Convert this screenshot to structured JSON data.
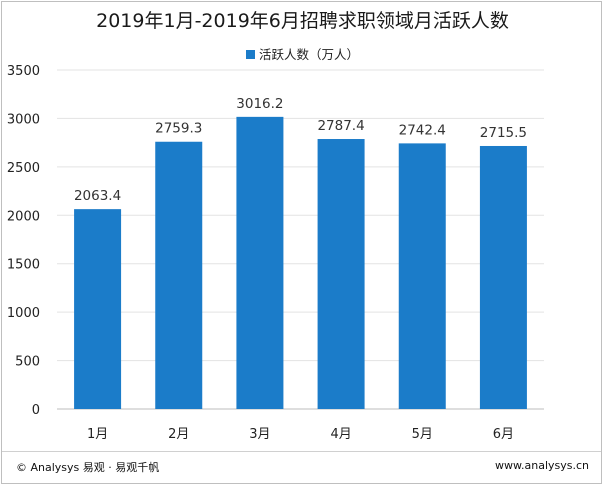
{
  "chart_data": {
    "type": "bar",
    "title": "2019年1月-2019年6月招聘求职领域月活跃人数",
    "categories": [
      "1月",
      "2月",
      "3月",
      "4月",
      "5月",
      "6月"
    ],
    "series": [
      {
        "name": "活跃人数（万人）",
        "values": [
          2063.4,
          2759.3,
          3016.2,
          2787.4,
          2742.4,
          2715.5
        ],
        "color": "#1b7cc9"
      }
    ],
    "ylim": [
      0,
      3500
    ],
    "yticks": [
      0,
      500,
      1000,
      1500,
      2000,
      2500,
      3000,
      3500
    ],
    "value_labels": [
      "2063.4",
      "2759.3",
      "3016.2",
      "2787.4",
      "2742.4",
      "2715.5"
    ],
    "grid": true,
    "legend": "top-center"
  },
  "footer": {
    "left": "© Analysys 易观 · 易观千帆",
    "right": "www.analysys.cn"
  }
}
